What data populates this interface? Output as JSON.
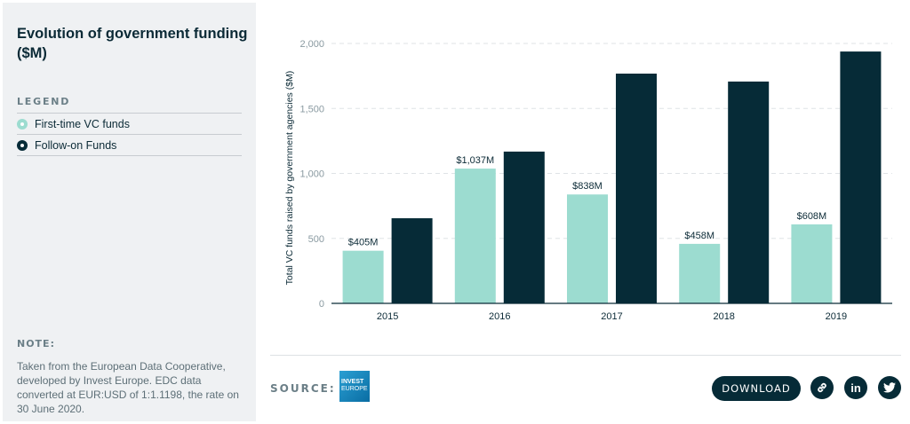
{
  "sidebar": {
    "title": "Evolution of government funding ($M)",
    "legend_title": "LEGEND",
    "legend": [
      {
        "label": "First-time VC funds",
        "color": "#9cdcd0"
      },
      {
        "label": "Follow-on Funds",
        "color": "#062b37"
      }
    ],
    "note_label": "NOTE:",
    "note_text": "Taken from the European Data Cooperative, developed by Invest Europe. EDC data converted at EUR:USD of 1:1.1198, the rate on 30 June 2020."
  },
  "footer": {
    "source_label": "SOURCE:",
    "source_logo": "INVEST EUROPE",
    "download_label": "DOWNLOAD",
    "icons": [
      "link-icon",
      "linkedin-icon",
      "twitter-icon"
    ]
  },
  "chart_data": {
    "type": "bar",
    "categories": [
      "2015",
      "2016",
      "2017",
      "2018",
      "2019"
    ],
    "series": [
      {
        "name": "First-time VC funds",
        "values": [
          405,
          1037,
          838,
          458,
          608
        ],
        "labels": [
          "$405M",
          "$1,037M",
          "$838M",
          "$458M",
          "$608M"
        ],
        "color": "#9cdcd0"
      },
      {
        "name": "Follow-on Funds",
        "values": [
          655,
          1168,
          1768,
          1707,
          1938
        ],
        "color": "#062b37"
      }
    ],
    "title": "Evolution of government funding ($M)",
    "xlabel": "",
    "ylabel": "Total VC funds raised by government agencies ($M)",
    "ylim": [
      0,
      2000
    ],
    "yticks": [
      0,
      500,
      1000,
      1500,
      2000
    ],
    "ytick_labels": [
      "0",
      "500",
      "1,000",
      "1,500",
      "2,000"
    ],
    "grid": true,
    "legend_position": "left-sidebar"
  }
}
